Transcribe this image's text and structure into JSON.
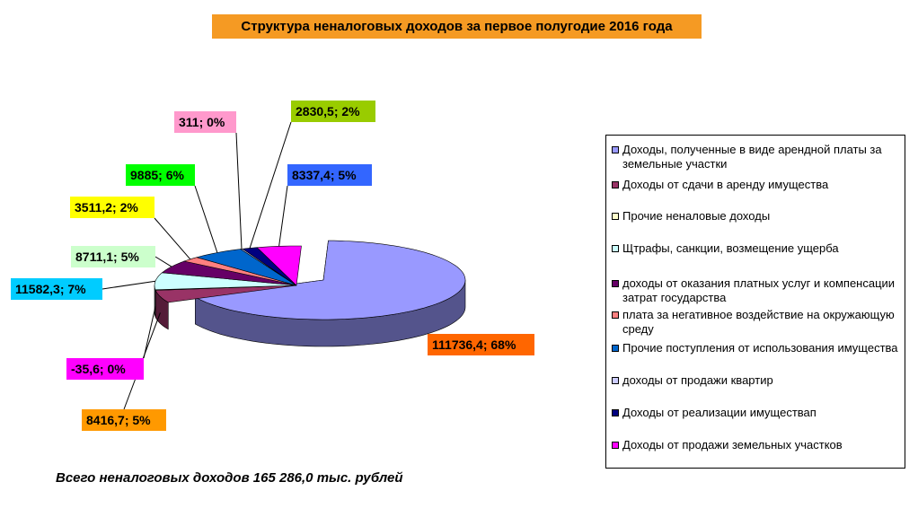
{
  "chart_data": {
    "type": "pie",
    "title": "Структура неналоговых доходов за первое полугодие 2016 года",
    "subtitle": "",
    "legend_position": "right",
    "total_note": "Всего неналоговых доходов 165 286,0 тыс. рублей",
    "slices": [
      {
        "name": "Доходы, полученные в виде арендной платы за земельные участки",
        "value": 111736.4,
        "percent": 68,
        "label": "111736,4; 68%",
        "color": "#9999ff",
        "label_bg": "#ff6600"
      },
      {
        "name": "Доходы от сдачи в аренду имущества",
        "value": 8416.7,
        "percent": 5,
        "label": "8416,7; 5%",
        "color": "#993366",
        "label_bg": "#ff9900"
      },
      {
        "name": "Прочие неналовые доходы",
        "value": -35.6,
        "percent": 0,
        "label": "-35,6; 0%",
        "color": "#ffffcc",
        "label_bg": "#ff00ff"
      },
      {
        "name": "Щтрафы, санкции, возмещение ущерба",
        "value": 11582.3,
        "percent": 7,
        "label": "11582,3; 7%",
        "color": "#ccffff",
        "label_bg": "#00ccff"
      },
      {
        "name": "доходы от оказания платных услуг и компенсации затрат государства",
        "value": 8711.1,
        "percent": 5,
        "label": "8711,1; 5%",
        "color": "#660066",
        "label_bg": "#ccffcc"
      },
      {
        "name": "плата за негативное воздействие на окружающую среду",
        "value": 3511.2,
        "percent": 2,
        "label": "3511,2; 2%",
        "color": "#ff8080",
        "label_bg": "#ffff00"
      },
      {
        "name": "Прочие поступления от использования имущества",
        "value": 9885,
        "percent": 6,
        "label": "9885; 6%",
        "color": "#0066cc",
        "label_bg": "#00ff00"
      },
      {
        "name": "доходы от продажи квартир",
        "value": 311,
        "percent": 0,
        "label": "311; 0%",
        "color": "#ccccff",
        "label_bg": "#ff99cc"
      },
      {
        "name": "Доходы от реализации имуществап",
        "value": 2830.5,
        "percent": 2,
        "label": "2830,5; 2%",
        "color": "#000080",
        "label_bg": "#99cc00"
      },
      {
        "name": "Доходы от продажи земельных участков",
        "value": 8337.4,
        "percent": 5,
        "label": "8337,4; 5%",
        "color": "#ff00ff",
        "label_bg": "#3366ff"
      }
    ]
  }
}
